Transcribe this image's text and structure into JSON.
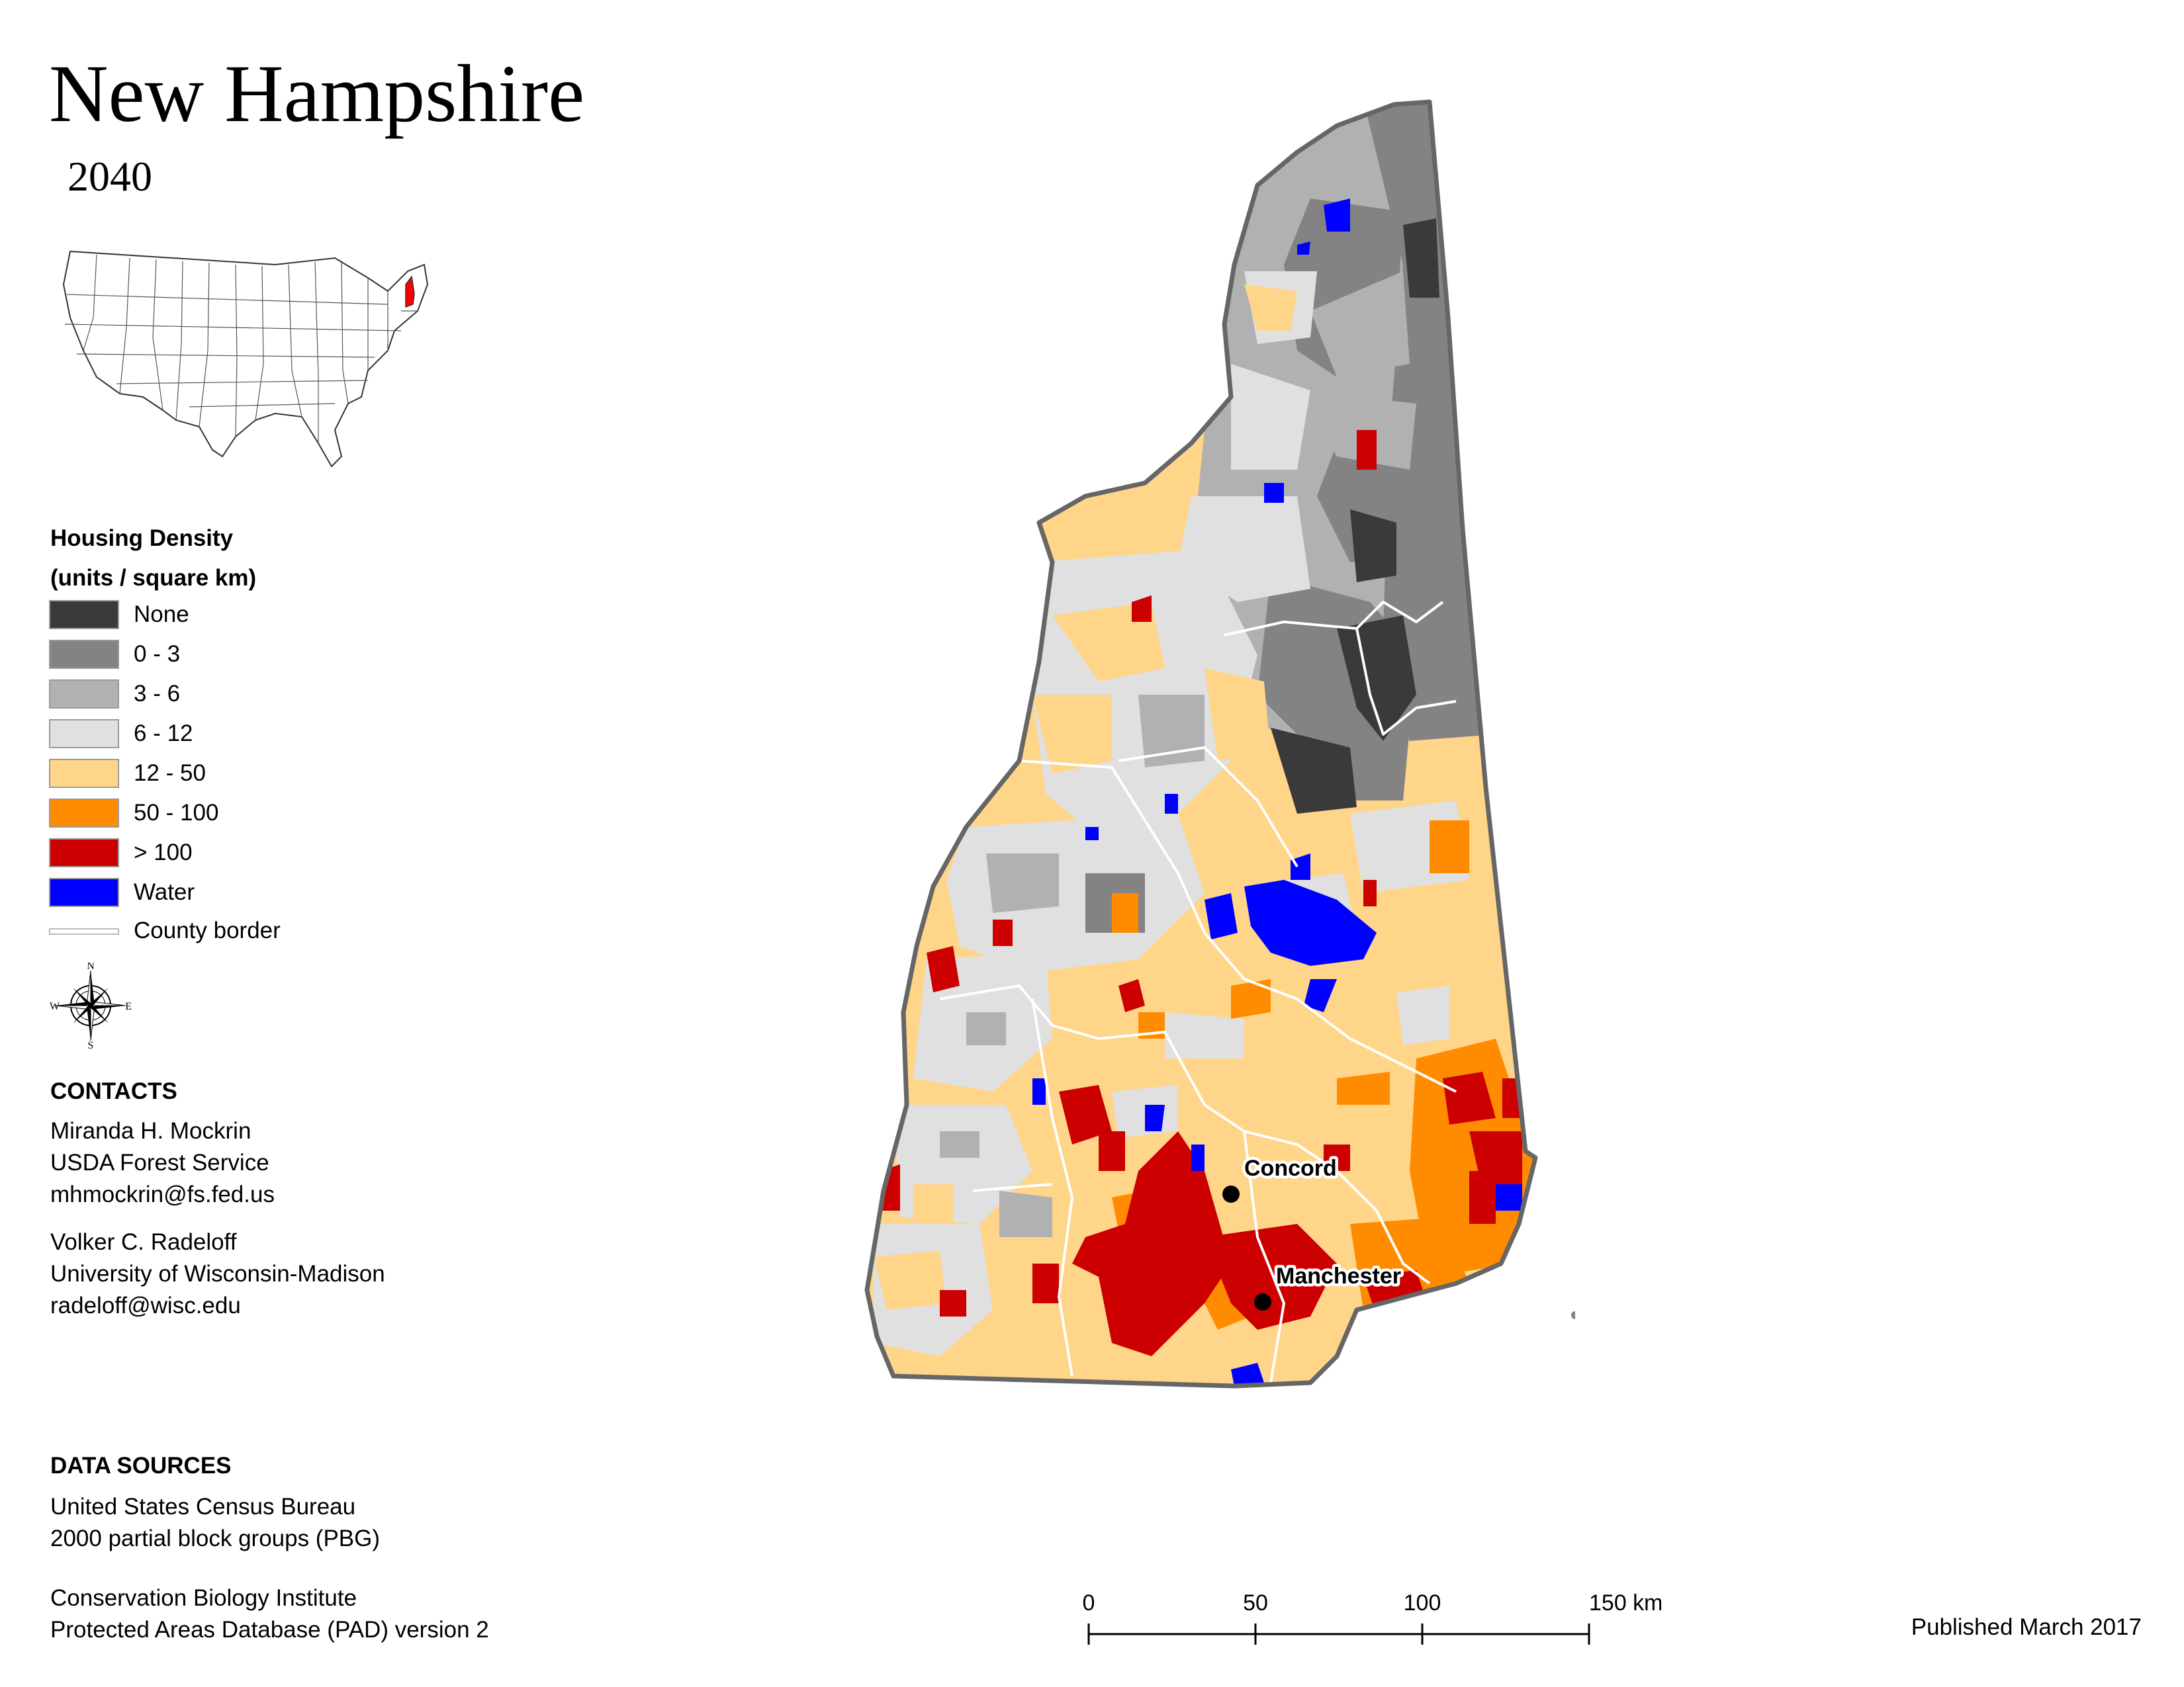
{
  "title": "New Hampshire",
  "subtitle": "2040",
  "legend": {
    "title_line1": "Housing Density",
    "title_line2": "(units / square km)",
    "items": [
      {
        "label": "None",
        "color": "#3a3a3a"
      },
      {
        "label": "0 - 3",
        "color": "#838383"
      },
      {
        "label": "3 - 6",
        "color": "#b1b1b1"
      },
      {
        "label": "6 - 12",
        "color": "#e0e0e0"
      },
      {
        "label": "12 - 50",
        "color": "#ffd58a"
      },
      {
        "label": "50 - 100",
        "color": "#ff8c00"
      },
      {
        "label": "> 100",
        "color": "#cc0000"
      },
      {
        "label": "Water",
        "color": "#0000ff"
      }
    ],
    "county_border_label": "County border"
  },
  "compass": {
    "n": "N",
    "s": "S",
    "e": "E",
    "w": "W"
  },
  "contacts": {
    "heading": "CONTACTS",
    "people": [
      {
        "name": "Miranda H. Mockrin",
        "org": "USDA Forest Service",
        "email": "mhmockrin@fs.fed.us"
      },
      {
        "name": "Volker C. Radeloff",
        "org": "University of Wisconsin-Madison",
        "email": "radeloff@wisc.edu"
      }
    ]
  },
  "data_sources": {
    "heading": "DATA SOURCES",
    "source1": {
      "line1": "United States Census Bureau",
      "line2": "2000 partial block groups (PBG)"
    },
    "source2": {
      "line1": "Conservation Biology Institute",
      "line2": "Protected Areas Database (PAD) version 2"
    }
  },
  "scale_bar": {
    "ticks": [
      "0",
      "50",
      "100",
      "150 km"
    ]
  },
  "published": "Published March 2017",
  "cities": [
    {
      "name": "Concord"
    },
    {
      "name": "Manchester"
    }
  ],
  "inset_highlight_color": "#ff0000"
}
